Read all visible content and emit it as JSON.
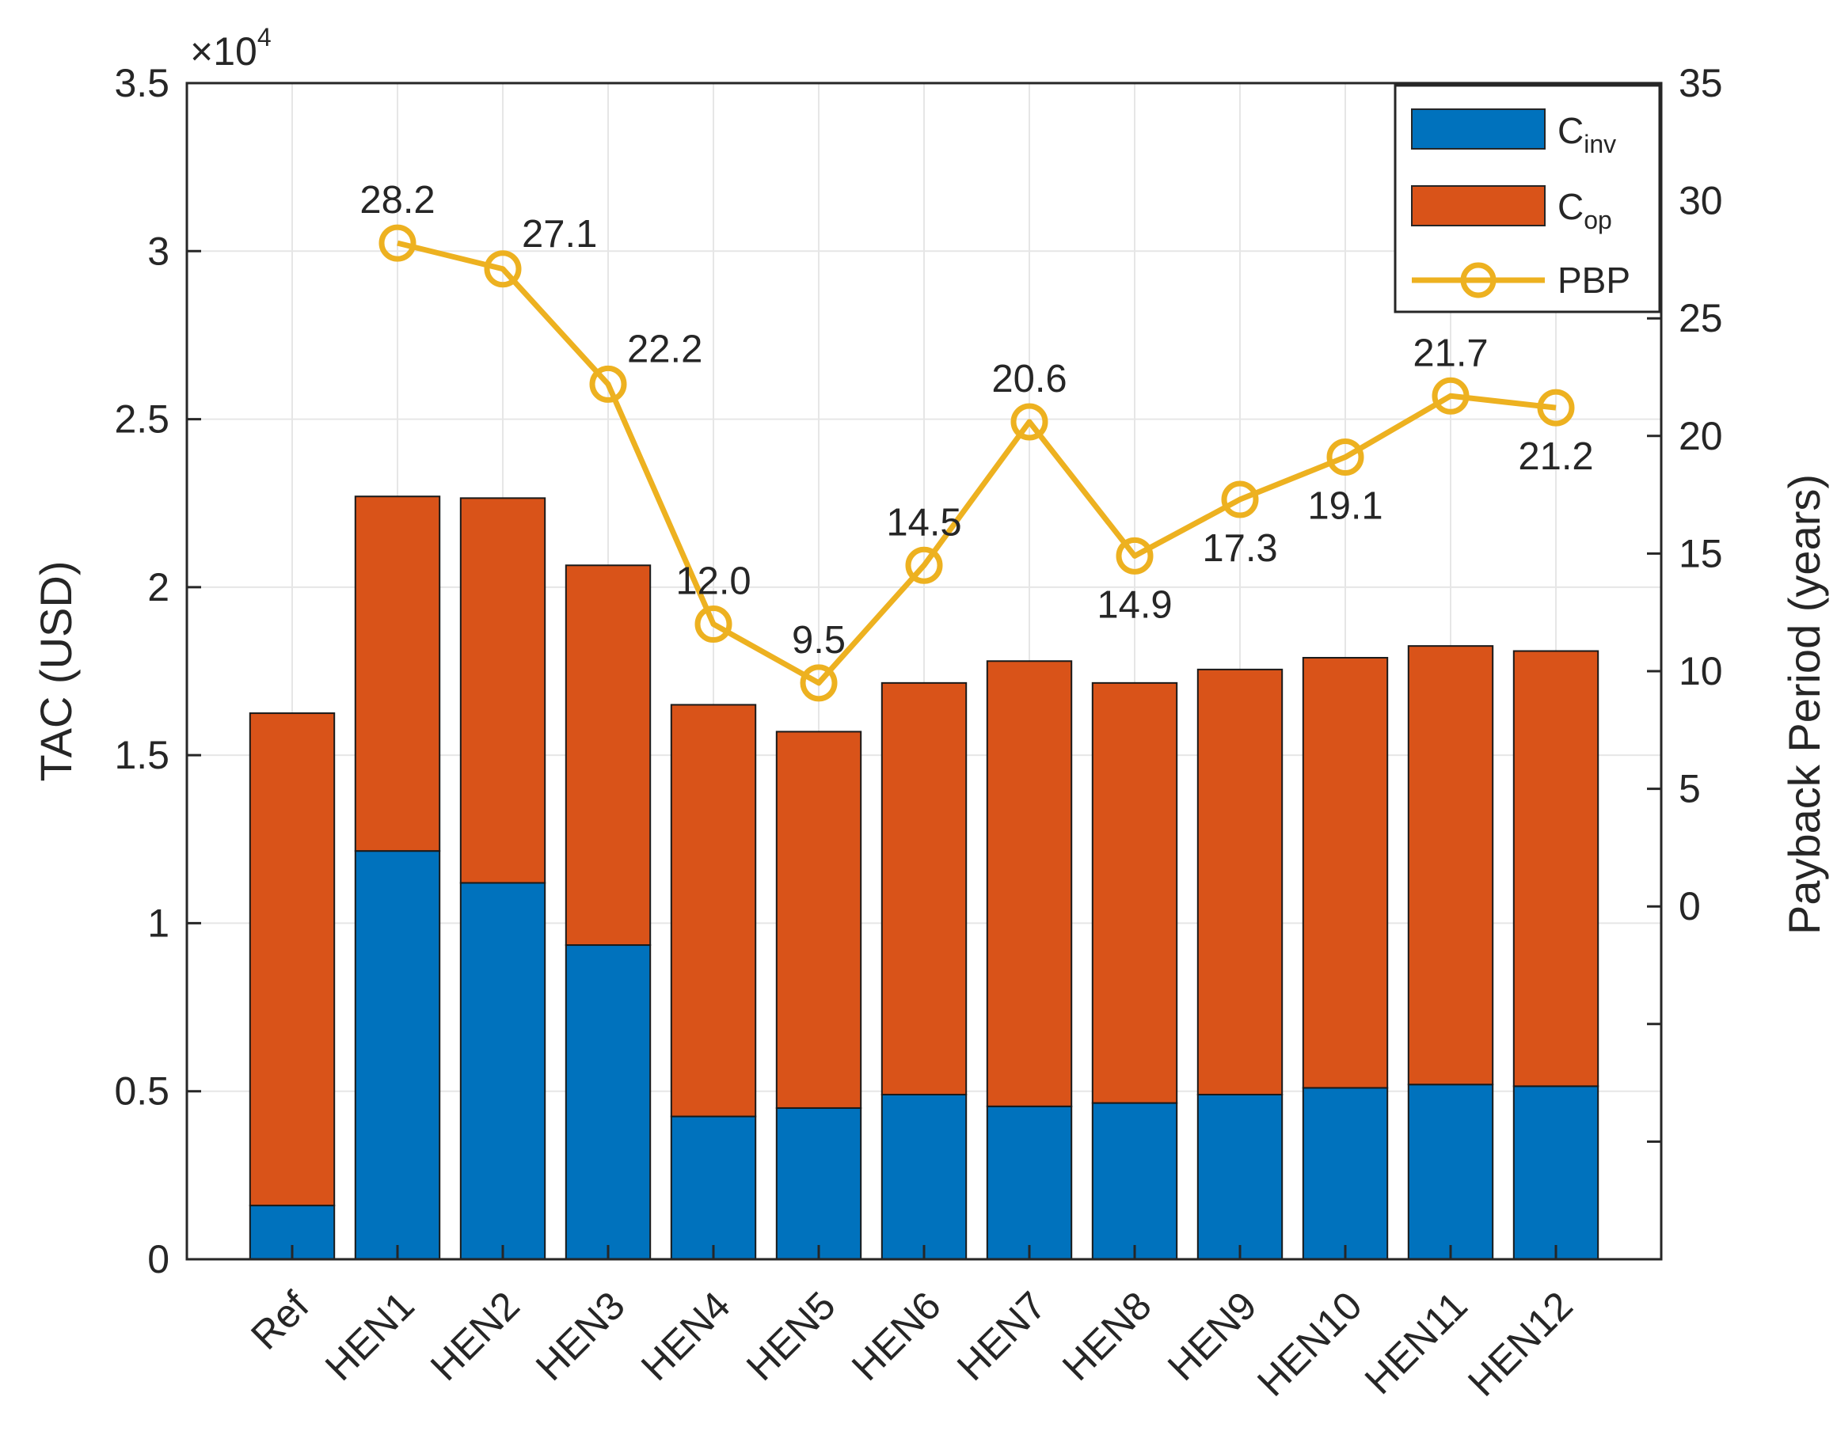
{
  "chart_data": {
    "type": "bar",
    "stacked": true,
    "categories": [
      "Ref",
      "HEN1",
      "HEN2",
      "HEN3",
      "HEN4",
      "HEN5",
      "HEN6",
      "HEN7",
      "HEN8",
      "HEN9",
      "HEN10",
      "HEN11",
      "HEN12"
    ],
    "series": [
      {
        "name": "C",
        "sub": "inv",
        "color": "#0072BD",
        "values": [
          1600,
          12150,
          11200,
          9350,
          4250,
          4500,
          4900,
          4550,
          4650,
          4900,
          5100,
          5200,
          5150
        ]
      },
      {
        "name": "C",
        "sub": "op",
        "color": "#D95319",
        "values": [
          14650,
          10550,
          11450,
          11300,
          12250,
          11200,
          12250,
          13250,
          12500,
          12650,
          12800,
          13050,
          12950
        ]
      }
    ],
    "line_series": {
      "name": "PBP",
      "color": "#EDB120",
      "axis": "right",
      "x": [
        "HEN1",
        "HEN2",
        "HEN3",
        "HEN4",
        "HEN5",
        "HEN6",
        "HEN7",
        "HEN8",
        "HEN9",
        "HEN10",
        "HEN11",
        "HEN12"
      ],
      "values": [
        28.2,
        27.1,
        22.2,
        12.0,
        9.5,
        14.5,
        20.6,
        14.9,
        17.3,
        19.1,
        21.7,
        21.2
      ],
      "labels": [
        "28.2",
        "27.1",
        "22.2",
        "12.0",
        "9.5",
        "14.5",
        "20.6",
        "14.9",
        "17.3",
        "19.1",
        "21.7",
        "21.2"
      ],
      "label_pos": [
        "above",
        "upper-right",
        "upper-right",
        "above",
        "above",
        "above",
        "above",
        "below",
        "below",
        "below",
        "above",
        "below"
      ]
    },
    "ylabel": "TAC (USD)",
    "ylim": [
      0,
      35000
    ],
    "y_ticks": [
      0,
      5000,
      10000,
      15000,
      20000,
      25000,
      30000,
      35000
    ],
    "y_tick_labels": [
      "0",
      "0.5",
      "1",
      "1.5",
      "2",
      "2.5",
      "3",
      "3.5"
    ],
    "y_multiplier": {
      "prefix": "×10",
      "exp": "4"
    },
    "y2label": "Payback Period (years)",
    "y2lim": [
      -15,
      35
    ],
    "y2_ticks": [
      -15,
      -10,
      -5,
      0,
      5,
      10,
      15,
      20,
      25,
      30,
      35
    ],
    "y2_tick_labels": [
      "",
      "",
      "",
      "0",
      "5",
      "10",
      "15",
      "20",
      "25",
      "30",
      "35"
    ],
    "grid": true,
    "legend": {
      "position": "top-right"
    }
  }
}
